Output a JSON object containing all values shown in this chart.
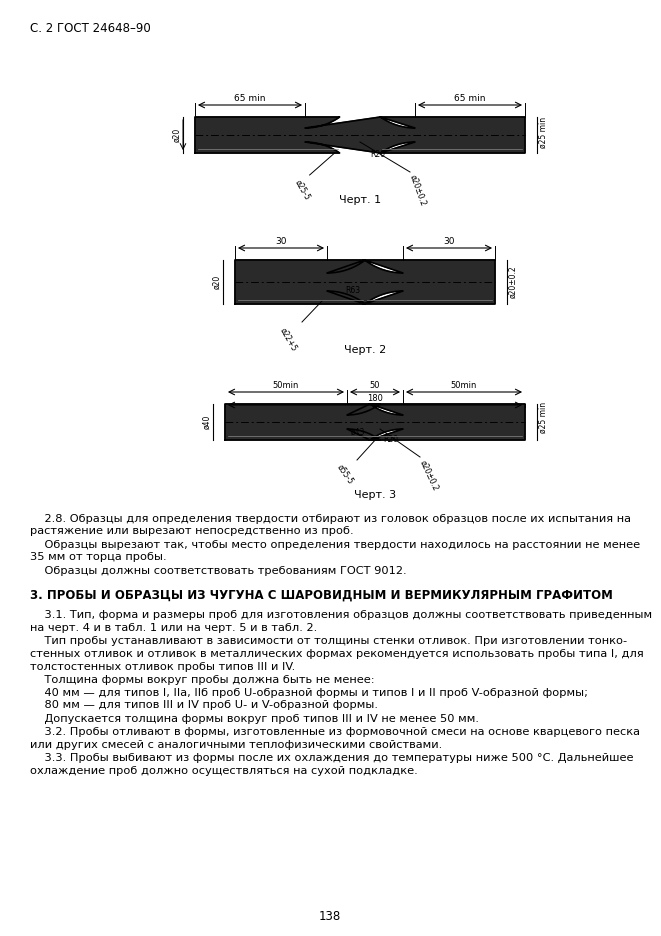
{
  "header": "С. 2 ГОСТ 24648–90",
  "page_number": "138",
  "chert1_label": "Черт. 1",
  "chert2_label": "Черт. 2",
  "chert3_label": "Черт. 3",
  "section3_title": "3. ПРОБЫ И ОБРАЗЦЫ ИЗ ЧУГУНА С ШАРОВИДНЫМ И ВЕРМИКУЛЯРНЫМ ГРАФИТОМ",
  "para28_line1": "    2.8. Образцы для определения твердости отбирают из головок образцов после их испытания на",
  "para28_line2": "растяжение или вырезают непосредственно из проб.",
  "para28b_line1": "    Образцы вырезают так, чтобы место определения твердости находилось на расстоянии не менее",
  "para28b_line2": "35 мм от торца пробы.",
  "para28c": "    Образцы должны соответствовать требованиям ГОСТ 9012.",
  "para31_line1": "    3.1. Тип, форма и размеры проб для изготовления образцов должны соответствовать приведенным",
  "para31_line2": "на черт. 4 и в табл. 1 или на черт. 5 и в табл. 2.",
  "para31b_line1": "    Тип пробы устанавливают в зависимости от толщины стенки отливок. При изготовлении тонко-",
  "para31b_line2": "стенных отливок и отливок в металлических формах рекомендуется использовать пробы типа I, для",
  "para31b_line3": "толстостенных отливок пробы типов III и IV.",
  "para31c": "    Толщина формы вокруг пробы должна быть не менее:",
  "para31d": "    40 мм — для типов I, IIа, IIб проб U-образной формы и типов I и II проб V-образной формы;",
  "para31e": "    80 мм — для типов III и IV проб U- и V-образной формы.",
  "para31f": "    Допускается толщина формы вокруг проб типов III и IV не менее 50 мм.",
  "para32_line1": "    3.2. Пробы отливают в формы, изготовленные из формовочной смеси на основе кварцевого песка",
  "para32_line2": "или других смесей с аналогичными теплофизическими свойствами.",
  "para33_line1": "    3.3. Пробы выбивают из формы после их охлаждения до температуры ниже 500 °С. Дальнейшее",
  "para33_line2": "охлаждение проб должно осуществляться на сухой подкладке.",
  "bg_color": "#ffffff",
  "text_color": "#000000"
}
